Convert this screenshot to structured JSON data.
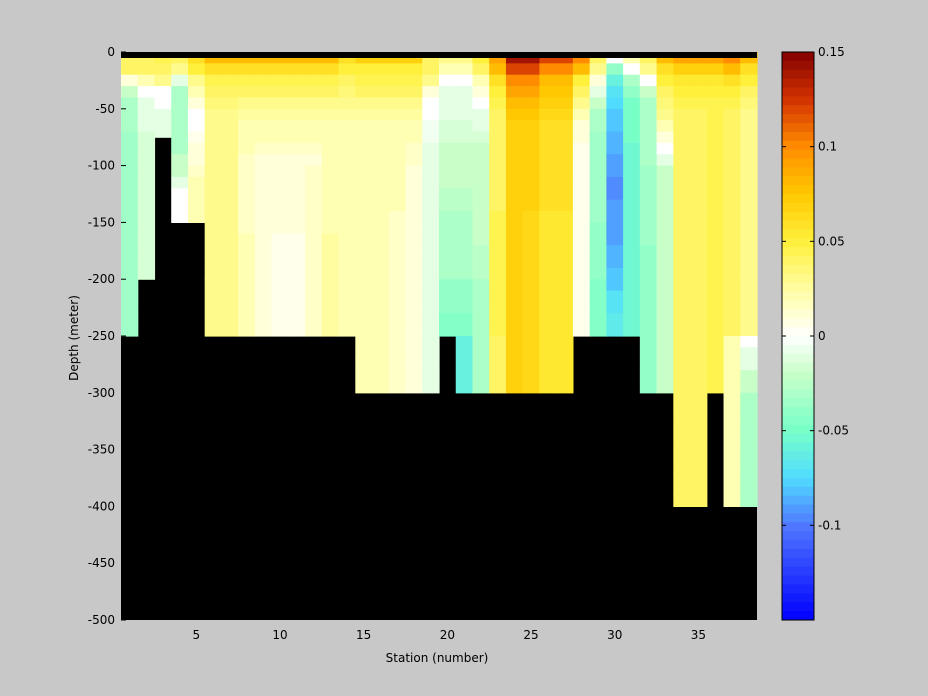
{
  "chart_data": {
    "type": "heatmap",
    "title": "",
    "xlabel": "Station (number)",
    "ylabel": "Depth (meter)",
    "xlim": [
      1,
      38
    ],
    "ylim": [
      -500,
      0
    ],
    "x_ticks": [
      5,
      10,
      15,
      20,
      25,
      30,
      35
    ],
    "x_tick_labels": [
      "5",
      "10",
      "15",
      "20",
      "25",
      "30",
      "35"
    ],
    "y_ticks": [
      0,
      -50,
      -100,
      -150,
      -200,
      -250,
      -300,
      -350,
      -400,
      -450,
      -500
    ],
    "y_tick_labels": [
      "0",
      "-50",
      "-100",
      "-150",
      "-200",
      "-250",
      "-300",
      "-350",
      "-400",
      "-450",
      "-500"
    ],
    "colorbar": {
      "clim": [
        -0.15,
        0.15
      ],
      "colormap": "jet-like diverging (blue - cyan - green - white - yellow - orange - dark red)",
      "ticks": [
        0.15,
        0.1,
        0.05,
        0,
        -0.05,
        -0.1
      ],
      "tick_labels": [
        "0.15",
        "0.1",
        "0.05",
        "0",
        "-0.05",
        "-0.1"
      ]
    },
    "bottom_mask_color": "#000000",
    "stations": [
      1,
      2,
      3,
      4,
      5,
      6,
      7,
      8,
      9,
      10,
      11,
      12,
      13,
      14,
      15,
      16,
      17,
      18,
      19,
      20,
      21,
      22,
      23,
      24,
      25,
      26,
      27,
      28,
      29,
      30,
      31,
      32,
      33,
      34,
      35,
      36,
      37,
      38
    ],
    "bottom_depths": [
      -250,
      -200,
      -75,
      -150,
      -150,
      -250,
      -250,
      -250,
      -250,
      -250,
      -250,
      -250,
      -250,
      -250,
      -300,
      -300,
      -300,
      -300,
      -300,
      -250,
      -300,
      -300,
      -300,
      -300,
      -300,
      -300,
      -300,
      -250,
      -250,
      -250,
      -300,
      -300,
      -300,
      -400,
      -400,
      -300,
      -400,
      -400
    ],
    "depth_levels": [
      0,
      -10,
      -20,
      -30,
      -40,
      -50,
      -60,
      -70,
      -80,
      -90,
      -100,
      -110,
      -120,
      -130,
      -140,
      -150,
      -160,
      -170,
      -180,
      -190,
      -200,
      -210,
      -220,
      -230,
      -240,
      -250,
      -260,
      -270,
      -280,
      -290,
      -300,
      -310,
      -320,
      -330,
      -340,
      -350,
      -360,
      -370,
      -380,
      -390,
      -400
    ],
    "profiles": [
      [
        0.04,
        0.04,
        0.01,
        -0.02,
        -0.03,
        -0.03,
        -0.03,
        -0.035,
        -0.035,
        -0.035,
        -0.035,
        -0.035,
        -0.035,
        -0.035,
        -0.035,
        -0.035,
        -0.035,
        -0.035,
        -0.035,
        -0.035,
        -0.035,
        -0.035,
        -0.035,
        -0.035,
        -0.035
      ],
      [
        0.04,
        0.04,
        0.02,
        0.0,
        -0.01,
        -0.01,
        -0.01,
        -0.015,
        -0.015,
        -0.015,
        -0.015,
        -0.015,
        -0.015,
        -0.015,
        -0.015,
        -0.015,
        -0.015,
        -0.015,
        -0.015,
        -0.015
      ],
      [
        0.045,
        0.04,
        0.03,
        0.0,
        0.0,
        -0.01,
        -0.01,
        -0.01
      ],
      [
        0.04,
        0.03,
        -0.01,
        -0.03,
        -0.03,
        -0.03,
        -0.03,
        -0.03,
        -0.03,
        -0.02,
        -0.02,
        -0.01,
        0.0,
        0.0,
        0.0
      ],
      [
        0.06,
        0.05,
        0.03,
        0.02,
        0.01,
        0.0,
        0.0,
        0.005,
        0.01,
        0.01,
        0.015,
        0.02,
        0.02,
        0.02,
        0.02
      ],
      [
        0.08,
        0.06,
        0.045,
        0.04,
        0.035,
        0.03,
        0.03,
        0.03,
        0.03,
        0.03,
        0.03,
        0.03,
        0.03,
        0.03,
        0.03,
        0.03,
        0.03,
        0.03,
        0.03,
        0.03,
        0.03,
        0.03,
        0.03,
        0.03,
        0.03
      ],
      [
        0.08,
        0.06,
        0.045,
        0.04,
        0.035,
        0.03,
        0.03,
        0.03,
        0.03,
        0.03,
        0.03,
        0.03,
        0.03,
        0.03,
        0.03,
        0.03,
        0.03,
        0.03,
        0.03,
        0.03,
        0.03,
        0.03,
        0.03,
        0.03,
        0.03
      ],
      [
        0.08,
        0.06,
        0.045,
        0.04,
        0.03,
        0.025,
        0.02,
        0.02,
        0.02,
        0.015,
        0.015,
        0.015,
        0.015,
        0.015,
        0.015,
        0.015,
        0.02,
        0.02,
        0.02,
        0.02,
        0.02,
        0.02,
        0.02,
        0.02,
        0.02
      ],
      [
        0.08,
        0.06,
        0.045,
        0.04,
        0.03,
        0.025,
        0.02,
        0.02,
        0.015,
        0.01,
        0.01,
        0.01,
        0.01,
        0.01,
        0.01,
        0.01,
        0.01,
        0.01,
        0.01,
        0.01,
        0.01,
        0.01,
        0.01,
        0.01,
        0.01
      ],
      [
        0.08,
        0.06,
        0.045,
        0.04,
        0.03,
        0.025,
        0.02,
        0.02,
        0.015,
        0.01,
        0.01,
        0.01,
        0.01,
        0.01,
        0.01,
        0.01,
        0.005,
        0.005,
        0.005,
        0.005,
        0.005,
        0.005,
        0.005,
        0.005,
        0.005
      ],
      [
        0.08,
        0.06,
        0.045,
        0.04,
        0.03,
        0.025,
        0.02,
        0.02,
        0.015,
        0.01,
        0.01,
        0.01,
        0.01,
        0.01,
        0.01,
        0.01,
        0.005,
        0.005,
        0.005,
        0.005,
        0.005,
        0.005,
        0.005,
        0.005,
        0.005
      ],
      [
        0.08,
        0.06,
        0.045,
        0.04,
        0.03,
        0.025,
        0.02,
        0.02,
        0.015,
        0.01,
        0.015,
        0.015,
        0.015,
        0.015,
        0.015,
        0.015,
        0.015,
        0.015,
        0.015,
        0.015,
        0.015,
        0.015,
        0.015,
        0.015,
        0.015
      ],
      [
        0.08,
        0.06,
        0.045,
        0.04,
        0.03,
        0.025,
        0.02,
        0.02,
        0.02,
        0.02,
        0.02,
        0.02,
        0.02,
        0.02,
        0.02,
        0.02,
        0.025,
        0.025,
        0.025,
        0.025,
        0.025,
        0.025,
        0.025,
        0.025,
        0.025
      ],
      [
        0.06,
        0.05,
        0.04,
        0.035,
        0.03,
        0.025,
        0.02,
        0.02,
        0.02,
        0.02,
        0.02,
        0.02,
        0.02,
        0.02,
        0.02,
        0.02,
        0.02,
        0.02,
        0.02,
        0.02,
        0.02,
        0.02,
        0.02,
        0.02,
        0.02
      ],
      [
        0.07,
        0.05,
        0.045,
        0.04,
        0.03,
        0.025,
        0.02,
        0.02,
        0.02,
        0.02,
        0.02,
        0.02,
        0.02,
        0.02,
        0.02,
        0.02,
        0.02,
        0.02,
        0.02,
        0.02,
        0.02,
        0.02,
        0.02,
        0.02,
        0.02,
        0.02,
        0.02,
        0.02,
        0.02,
        0.02
      ],
      [
        0.07,
        0.05,
        0.045,
        0.04,
        0.03,
        0.025,
        0.02,
        0.02,
        0.02,
        0.02,
        0.02,
        0.02,
        0.02,
        0.02,
        0.02,
        0.02,
        0.02,
        0.02,
        0.02,
        0.02,
        0.02,
        0.02,
        0.02,
        0.02,
        0.02,
        0.02,
        0.02,
        0.02,
        0.02,
        0.02
      ],
      [
        0.07,
        0.05,
        0.045,
        0.04,
        0.03,
        0.025,
        0.02,
        0.02,
        0.02,
        0.02,
        0.02,
        0.02,
        0.02,
        0.02,
        0.015,
        0.015,
        0.015,
        0.015,
        0.015,
        0.015,
        0.015,
        0.015,
        0.015,
        0.015,
        0.015,
        0.015,
        0.015,
        0.015,
        0.015,
        0.015
      ],
      [
        0.07,
        0.05,
        0.045,
        0.04,
        0.03,
        0.025,
        0.02,
        0.02,
        0.015,
        0.015,
        0.01,
        0.01,
        0.01,
        0.01,
        0.01,
        0.01,
        0.01,
        0.01,
        0.01,
        0.01,
        0.01,
        0.01,
        0.01,
        0.01,
        0.01,
        0.01,
        0.01,
        0.01,
        0.01,
        0.01
      ],
      [
        0.04,
        0.04,
        0.03,
        0.01,
        0.0,
        0.0,
        -0.005,
        -0.005,
        -0.01,
        -0.01,
        -0.01,
        -0.01,
        -0.01,
        -0.01,
        -0.01,
        -0.01,
        -0.01,
        -0.01,
        -0.01,
        -0.01,
        -0.01,
        -0.01,
        -0.01,
        -0.01,
        -0.01,
        -0.01,
        -0.01,
        -0.01,
        -0.01,
        -0.01
      ],
      [
        0.03,
        0.02,
        0.0,
        -0.01,
        -0.01,
        -0.01,
        -0.015,
        -0.015,
        -0.02,
        -0.02,
        -0.02,
        -0.02,
        -0.025,
        -0.025,
        -0.03,
        -0.03,
        -0.03,
        -0.03,
        -0.03,
        -0.03,
        -0.04,
        -0.04,
        -0.04,
        -0.045,
        -0.045
      ],
      [
        0.03,
        0.02,
        0.0,
        -0.01,
        -0.01,
        -0.01,
        -0.015,
        -0.015,
        -0.02,
        -0.02,
        -0.02,
        -0.02,
        -0.025,
        -0.025,
        -0.03,
        -0.03,
        -0.03,
        -0.03,
        -0.03,
        -0.03,
        -0.04,
        -0.04,
        -0.04,
        -0.045,
        -0.045,
        -0.06,
        -0.06,
        -0.06,
        -0.06,
        -0.06
      ],
      [
        0.05,
        0.04,
        0.02,
        0.01,
        0.0,
        -0.01,
        -0.01,
        -0.015,
        -0.02,
        -0.02,
        -0.02,
        -0.02,
        -0.02,
        -0.02,
        -0.02,
        -0.02,
        -0.02,
        -0.025,
        -0.025,
        -0.025,
        -0.03,
        -0.03,
        -0.03,
        -0.03,
        -0.03,
        -0.03,
        -0.03,
        -0.03,
        -0.03,
        -0.03
      ],
      [
        0.09,
        0.08,
        0.06,
        0.05,
        0.045,
        0.04,
        0.04,
        0.04,
        0.04,
        0.04,
        0.04,
        0.04,
        0.04,
        0.04,
        0.045,
        0.045,
        0.045,
        0.045,
        0.045,
        0.045,
        0.045,
        0.045,
        0.045,
        0.045,
        0.045,
        0.04,
        0.04,
        0.04,
        0.04,
        0.04
      ],
      [
        0.14,
        0.12,
        0.1,
        0.09,
        0.08,
        0.075,
        0.07,
        0.07,
        0.07,
        0.07,
        0.07,
        0.07,
        0.07,
        0.07,
        0.07,
        0.07,
        0.07,
        0.07,
        0.07,
        0.07,
        0.07,
        0.07,
        0.07,
        0.07,
        0.07,
        0.07,
        0.07,
        0.07,
        0.07,
        0.07
      ],
      [
        0.14,
        0.12,
        0.1,
        0.09,
        0.08,
        0.075,
        0.07,
        0.07,
        0.07,
        0.07,
        0.07,
        0.07,
        0.07,
        0.07,
        0.065,
        0.065,
        0.065,
        0.065,
        0.065,
        0.065,
        0.065,
        0.065,
        0.065,
        0.065,
        0.065,
        0.065,
        0.065,
        0.065,
        0.065,
        0.065
      ],
      [
        0.12,
        0.1,
        0.08,
        0.075,
        0.07,
        0.065,
        0.06,
        0.06,
        0.06,
        0.06,
        0.06,
        0.06,
        0.06,
        0.06,
        0.055,
        0.055,
        0.055,
        0.055,
        0.055,
        0.055,
        0.055,
        0.055,
        0.055,
        0.055,
        0.055,
        0.055,
        0.055,
        0.055,
        0.055,
        0.055
      ],
      [
        0.12,
        0.1,
        0.08,
        0.075,
        0.07,
        0.065,
        0.06,
        0.06,
        0.06,
        0.06,
        0.06,
        0.06,
        0.06,
        0.06,
        0.055,
        0.055,
        0.055,
        0.055,
        0.055,
        0.055,
        0.055,
        0.055,
        0.055,
        0.055,
        0.055,
        0.055,
        0.055,
        0.055,
        0.055,
        0.055
      ],
      [
        0.1,
        0.08,
        0.05,
        0.04,
        0.03,
        0.02,
        0.01,
        0.01,
        0.005,
        0.005,
        0.005,
        0.005,
        0.005,
        0.005,
        0.005,
        0.005,
        0.005,
        0.005,
        0.005,
        0.005,
        0.005,
        0.005,
        0.005,
        0.005,
        0.005,
        0.005,
        0.005,
        0.005,
        0.005,
        0.005
      ],
      [
        0.04,
        0.03,
        0.01,
        -0.01,
        -0.02,
        -0.03,
        -0.03,
        -0.035,
        -0.035,
        -0.035,
        -0.035,
        -0.035,
        -0.035,
        -0.035,
        -0.035,
        -0.04,
        -0.04,
        -0.04,
        -0.04,
        -0.04,
        -0.045,
        -0.045,
        -0.045,
        -0.045,
        -0.045
      ],
      [
        0.0,
        -0.04,
        -0.06,
        -0.07,
        -0.075,
        -0.08,
        -0.08,
        -0.085,
        -0.085,
        -0.09,
        -0.09,
        -0.095,
        -0.095,
        -0.09,
        -0.09,
        -0.09,
        -0.09,
        -0.085,
        -0.085,
        -0.08,
        -0.08,
        -0.07,
        -0.07,
        -0.065,
        -0.065
      ],
      [
        0.02,
        0.0,
        -0.03,
        -0.04,
        -0.05,
        -0.05,
        -0.05,
        -0.05,
        -0.055,
        -0.055,
        -0.055,
        -0.055,
        -0.055,
        -0.055,
        -0.055,
        -0.055,
        -0.055,
        -0.055,
        -0.055,
        -0.055,
        -0.055,
        -0.055,
        -0.055,
        -0.055,
        -0.055
      ],
      [
        0.04,
        0.03,
        0.0,
        -0.02,
        -0.03,
        -0.03,
        -0.03,
        -0.03,
        -0.03,
        -0.03,
        -0.035,
        -0.035,
        -0.035,
        -0.035,
        -0.035,
        -0.035,
        -0.035,
        -0.04,
        -0.04,
        -0.04,
        -0.04,
        -0.04,
        -0.04,
        -0.04,
        -0.04,
        -0.04,
        -0.04,
        -0.04,
        -0.04,
        -0.04
      ],
      [
        0.08,
        0.06,
        0.05,
        0.04,
        0.035,
        0.03,
        0.02,
        0.01,
        0.0,
        -0.01,
        -0.02,
        -0.02,
        -0.02,
        -0.02,
        -0.02,
        -0.02,
        -0.02,
        -0.02,
        -0.02,
        -0.02,
        -0.02,
        -0.02,
        -0.02,
        -0.02,
        -0.02,
        -0.02,
        -0.02,
        -0.02,
        -0.02,
        -0.02
      ],
      [
        0.09,
        0.07,
        0.055,
        0.05,
        0.045,
        0.04,
        0.04,
        0.04,
        0.04,
        0.04,
        0.04,
        0.04,
        0.04,
        0.04,
        0.04,
        0.04,
        0.04,
        0.04,
        0.04,
        0.04,
        0.04,
        0.04,
        0.04,
        0.04,
        0.04,
        0.04,
        0.04,
        0.04,
        0.04,
        0.04,
        0.04,
        0.04,
        0.04,
        0.04,
        0.04,
        0.04,
        0.04,
        0.04,
        0.04,
        0.04
      ],
      [
        0.09,
        0.07,
        0.055,
        0.05,
        0.045,
        0.04,
        0.04,
        0.04,
        0.04,
        0.04,
        0.04,
        0.04,
        0.04,
        0.04,
        0.04,
        0.04,
        0.04,
        0.04,
        0.04,
        0.04,
        0.04,
        0.04,
        0.04,
        0.04,
        0.04,
        0.04,
        0.04,
        0.04,
        0.04,
        0.04,
        0.04,
        0.04,
        0.04,
        0.04,
        0.04,
        0.04,
        0.04,
        0.04,
        0.04,
        0.04
      ],
      [
        0.09,
        0.07,
        0.055,
        0.05,
        0.045,
        0.045,
        0.045,
        0.045,
        0.045,
        0.045,
        0.045,
        0.045,
        0.045,
        0.045,
        0.045,
        0.045,
        0.045,
        0.045,
        0.045,
        0.045,
        0.045,
        0.045,
        0.045,
        0.045,
        0.045,
        0.045,
        0.045,
        0.045,
        0.045,
        0.045
      ],
      [
        0.1,
        0.08,
        0.06,
        0.05,
        0.045,
        0.04,
        0.04,
        0.04,
        0.04,
        0.04,
        0.04,
        0.04,
        0.04,
        0.04,
        0.04,
        0.04,
        0.04,
        0.04,
        0.04,
        0.04,
        0.04,
        0.04,
        0.04,
        0.04,
        0.04,
        0.02,
        0.02,
        0.02,
        0.02,
        0.02,
        0.02,
        0.02,
        0.02,
        0.02,
        0.02,
        0.02,
        0.02,
        0.02,
        0.02,
        0.02
      ],
      [
        0.08,
        0.06,
        0.05,
        0.04,
        0.035,
        0.03,
        0.03,
        0.03,
        0.03,
        0.03,
        0.03,
        0.03,
        0.03,
        0.03,
        0.03,
        0.03,
        0.03,
        0.03,
        0.03,
        0.03,
        0.03,
        0.03,
        0.03,
        0.03,
        0.03,
        0.0,
        -0.01,
        -0.01,
        -0.02,
        -0.02,
        -0.03,
        -0.03,
        -0.03,
        -0.03,
        -0.03,
        -0.03,
        -0.03,
        -0.03,
        -0.03,
        -0.03
      ]
    ]
  }
}
